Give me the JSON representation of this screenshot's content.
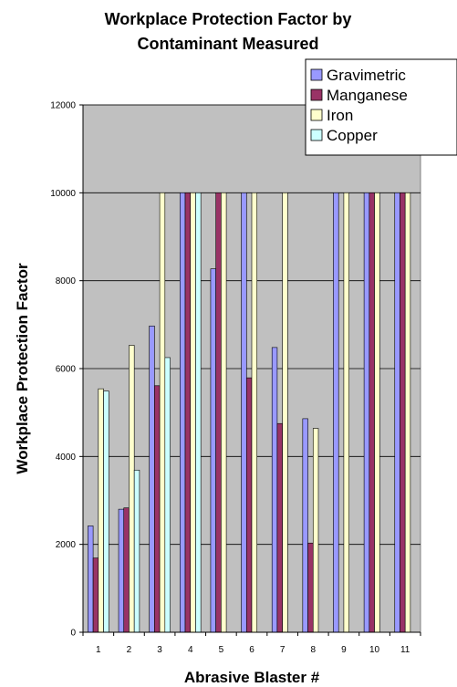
{
  "chart_data": {
    "type": "bar",
    "title_lines": [
      "Workplace Protection Factor by",
      "Contaminant Measured"
    ],
    "xlabel": "Abrasive Blaster #",
    "ylabel": "Workplace Protection Factor",
    "categories": [
      "1",
      "2",
      "3",
      "4",
      "5",
      "6",
      "7",
      "8",
      "9",
      "10",
      "11"
    ],
    "ylim": [
      0,
      12000
    ],
    "yticks": [
      0,
      2000,
      4000,
      6000,
      8000,
      10000,
      12000
    ],
    "grid": true,
    "legend_position": "top-right",
    "series": [
      {
        "name": "Gravimetric",
        "color": "#9999ff",
        "values": [
          2420,
          2800,
          6970,
          10000,
          8270,
          10000,
          6480,
          4860,
          10000,
          10000,
          10000
        ]
      },
      {
        "name": "Manganese",
        "color": "#993366",
        "values": [
          1690,
          2830,
          5610,
          10000,
          10000,
          5790,
          4750,
          2030,
          null,
          10000,
          10000
        ]
      },
      {
        "name": "Iron",
        "color": "#ffffcc",
        "values": [
          5540,
          6530,
          10000,
          10000,
          10000,
          10000,
          10000,
          4640,
          10000,
          10000,
          10000
        ]
      },
      {
        "name": "Copper",
        "color": "#ccffff",
        "values": [
          5490,
          3690,
          6250,
          10000,
          null,
          null,
          null,
          null,
          null,
          null,
          null
        ]
      }
    ]
  }
}
